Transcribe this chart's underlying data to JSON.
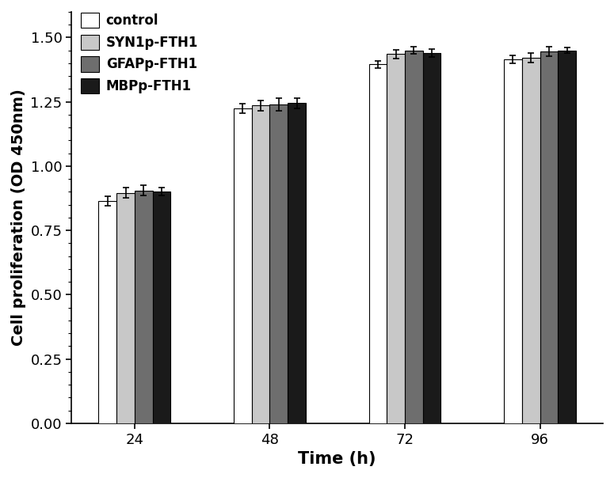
{
  "time_points": [
    24,
    48,
    72,
    96
  ],
  "series": {
    "control": {
      "values": [
        0.865,
        1.225,
        1.395,
        1.415
      ],
      "errors": [
        0.018,
        0.018,
        0.015,
        0.015
      ],
      "color": "#ffffff",
      "edgecolor": "#000000"
    },
    "SYN1p-FTH1": {
      "values": [
        0.895,
        1.235,
        1.435,
        1.42
      ],
      "errors": [
        0.02,
        0.02,
        0.018,
        0.018
      ],
      "color": "#c8c8c8",
      "edgecolor": "#000000"
    },
    "GFAPp-FTH1": {
      "values": [
        0.905,
        1.24,
        1.45,
        1.445
      ],
      "errors": [
        0.02,
        0.025,
        0.015,
        0.018
      ],
      "color": "#6e6e6e",
      "edgecolor": "#000000"
    },
    "MBPp-FTH1": {
      "values": [
        0.9,
        1.245,
        1.44,
        1.45
      ],
      "errors": [
        0.015,
        0.02,
        0.015,
        0.012
      ],
      "color": "#1a1a1a",
      "edgecolor": "#000000"
    }
  },
  "series_order": [
    "control",
    "SYN1p-FTH1",
    "GFAPp-FTH1",
    "MBPp-FTH1"
  ],
  "ylabel": "Cell proliferation (OD 450nm)",
  "xlabel": "Time (h)",
  "ylim": [
    0.0,
    1.6
  ],
  "yticks": [
    0.0,
    0.25,
    0.5,
    0.75,
    1.0,
    1.25,
    1.5
  ],
  "bar_width": 0.2,
  "legend_labels": [
    "control",
    "SYN1p-FTH1",
    "GFAPp-FTH1",
    "MBPp-FTH1"
  ],
  "capsize": 3,
  "elinewidth": 1.2,
  "capthick": 1.2,
  "ylabel_fontsize": 14,
  "xlabel_fontsize": 15,
  "tick_fontsize": 13,
  "legend_fontsize": 12,
  "bar_linewidth": 0.8
}
